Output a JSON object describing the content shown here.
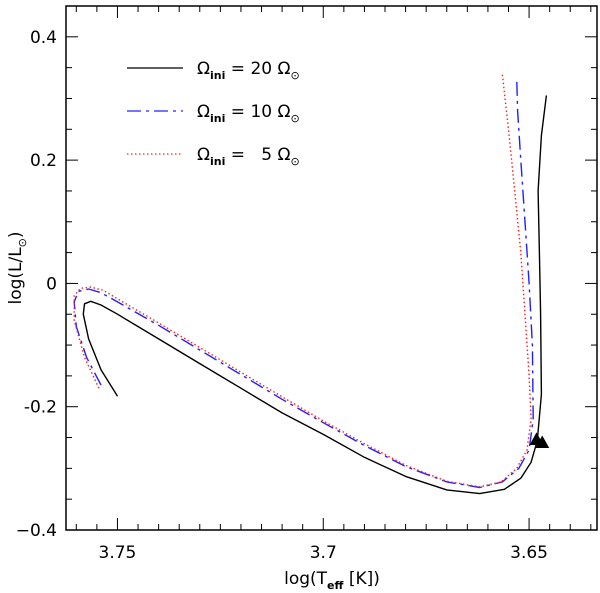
{
  "chart_data": {
    "type": "line",
    "title": "",
    "xlabel": {
      "main": "log(T",
      "sub": "eff",
      "tail": " [K])"
    },
    "ylabel": {
      "main": "log(L/L",
      "sub": "⊙",
      "tail": ")"
    },
    "xlim": [
      3.7625,
      3.6335
    ],
    "ylim": [
      -0.4,
      0.45
    ],
    "x_axis_reversed": true,
    "xticks": [
      {
        "value": 3.75,
        "label": "3.75"
      },
      {
        "value": 3.7,
        "label": "3.7"
      },
      {
        "value": 3.65,
        "label": "3.65"
      }
    ],
    "yticks": [
      {
        "value": 0.4,
        "label": "0.4"
      },
      {
        "value": 0.2,
        "label": "0.2"
      },
      {
        "value": 0.0,
        "label": "0"
      },
      {
        "value": -0.2,
        "label": "-0.2"
      },
      {
        "value": -0.4,
        "label": "−0.4"
      }
    ],
    "legend_position": "top-left",
    "series": [
      {
        "name": "Ωini = 20 Ω⊙",
        "legend": {
          "sym": "Ω",
          "sub": "ini",
          "eq": " = ",
          "num": "20",
          "sun": "Ω",
          "sunsub": "⊙"
        },
        "color": "#000000",
        "style": "solid",
        "points": [
          [
            3.75,
            -0.183
          ],
          [
            3.754,
            -0.14
          ],
          [
            3.757,
            -0.09
          ],
          [
            3.7583,
            -0.05
          ],
          [
            3.758,
            -0.033
          ],
          [
            3.7565,
            -0.029
          ],
          [
            3.754,
            -0.035
          ],
          [
            3.75,
            -0.05
          ],
          [
            3.74,
            -0.09
          ],
          [
            3.73,
            -0.13
          ],
          [
            3.72,
            -0.17
          ],
          [
            3.71,
            -0.21
          ],
          [
            3.7,
            -0.245
          ],
          [
            3.69,
            -0.282
          ],
          [
            3.68,
            -0.313
          ],
          [
            3.67,
            -0.335
          ],
          [
            3.662,
            -0.341
          ],
          [
            3.656,
            -0.334
          ],
          [
            3.652,
            -0.316
          ],
          [
            3.6495,
            -0.29
          ],
          [
            3.648,
            -0.255
          ],
          [
            3.647,
            -0.18
          ],
          [
            3.6472,
            -0.05
          ],
          [
            3.6475,
            0.05
          ],
          [
            3.6478,
            0.15
          ],
          [
            3.647,
            0.24
          ],
          [
            3.6458,
            0.305
          ]
        ]
      },
      {
        "name": "Ωini = 10 Ω⊙",
        "legend": {
          "sym": "Ω",
          "sub": "ini",
          "eq": " = ",
          "num": "10",
          "sun": "Ω",
          "sunsub": "⊙"
        },
        "color": "#2020ff",
        "style": "dashed",
        "points": [
          [
            3.754,
            -0.165
          ],
          [
            3.7575,
            -0.12
          ],
          [
            3.76,
            -0.07
          ],
          [
            3.7605,
            -0.03
          ],
          [
            3.7595,
            -0.013
          ],
          [
            3.757,
            -0.009
          ],
          [
            3.754,
            -0.015
          ],
          [
            3.75,
            -0.03
          ],
          [
            3.74,
            -0.068
          ],
          [
            3.73,
            -0.108
          ],
          [
            3.72,
            -0.148
          ],
          [
            3.71,
            -0.188
          ],
          [
            3.7,
            -0.226
          ],
          [
            3.69,
            -0.263
          ],
          [
            3.68,
            -0.297
          ],
          [
            3.67,
            -0.322
          ],
          [
            3.662,
            -0.331
          ],
          [
            3.6565,
            -0.322
          ],
          [
            3.6525,
            -0.3
          ],
          [
            3.65,
            -0.27
          ],
          [
            3.649,
            -0.22
          ],
          [
            3.6492,
            -0.1
          ],
          [
            3.65,
            0.0
          ],
          [
            3.651,
            0.1
          ],
          [
            3.652,
            0.2
          ],
          [
            3.6528,
            0.28
          ],
          [
            3.653,
            0.335
          ]
        ]
      },
      {
        "name": "Ωini = 5 Ω⊙",
        "legend": {
          "sym": "Ω",
          "sub": "ini",
          "eq": " =  ",
          "num": "5",
          "sun": "Ω",
          "sunsub": "⊙"
        },
        "color": "#ff2020",
        "style": "dotted",
        "points": [
          [
            3.7545,
            -0.17
          ],
          [
            3.758,
            -0.12
          ],
          [
            3.7605,
            -0.06
          ],
          [
            3.7605,
            -0.02
          ],
          [
            3.759,
            -0.008
          ],
          [
            3.7565,
            -0.006
          ],
          [
            3.7535,
            -0.011
          ],
          [
            3.75,
            -0.025
          ],
          [
            3.74,
            -0.064
          ],
          [
            3.73,
            -0.104
          ],
          [
            3.72,
            -0.144
          ],
          [
            3.71,
            -0.184
          ],
          [
            3.7,
            -0.223
          ],
          [
            3.69,
            -0.26
          ],
          [
            3.68,
            -0.295
          ],
          [
            3.67,
            -0.321
          ],
          [
            3.662,
            -0.33
          ],
          [
            3.6568,
            -0.322
          ],
          [
            3.653,
            -0.3
          ],
          [
            3.6505,
            -0.27
          ],
          [
            3.6495,
            -0.22
          ],
          [
            3.65,
            -0.15
          ],
          [
            3.651,
            -0.05
          ],
          [
            3.652,
            0.05
          ],
          [
            3.6535,
            0.15
          ],
          [
            3.655,
            0.25
          ],
          [
            3.6565,
            0.34
          ]
        ]
      }
    ],
    "markers": [
      {
        "shape": "triangle",
        "x": 3.6482,
        "y": -0.253
      },
      {
        "shape": "triangle",
        "x": 3.6468,
        "y": -0.258
      }
    ]
  }
}
